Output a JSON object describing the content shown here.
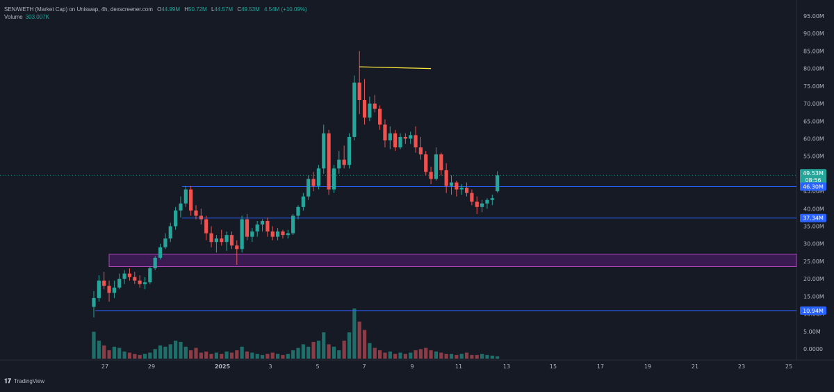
{
  "header": {
    "symbol": "SEN/WETH (Market Cap) on Uniswap, 4h, dexscreener.com",
    "ohlc": [
      {
        "key": "O",
        "value": "44.99M"
      },
      {
        "key": "H",
        "value": "50.72M"
      },
      {
        "key": "L",
        "value": "44.57M"
      },
      {
        "key": "C",
        "value": "49.53M"
      }
    ],
    "change": "4.54M (+10.09%)",
    "volume_label": "Volume",
    "volume_value": "303.007K"
  },
  "footer": {
    "brand": "TradingView",
    "logo_glyph": "𝟏𝟕"
  },
  "colors": {
    "background": "#161a25",
    "up": "#26a69a",
    "down": "#ef5350",
    "up_volume": "#1f6e69",
    "down_volume": "#8a3d46",
    "level_line": "#2962ff",
    "zone_fill": "#7b1fa2",
    "zone_border": "#ab47bc",
    "trend_line": "#ffeb3b",
    "axis_text": "#b2b5be",
    "grid": "#1f2431"
  },
  "chart_data": {
    "type": "candlestick",
    "yaxis": {
      "min": 0,
      "max": 95000000,
      "unit": "M",
      "ticks": [
        "95.00M",
        "90.00M",
        "85.00M",
        "80.00M",
        "75.00M",
        "70.00M",
        "65.00M",
        "60.00M",
        "55.00M",
        "50.00M",
        "45.00M",
        "40.00M",
        "35.00M",
        "30.00M",
        "25.00M",
        "20.00M",
        "15.00M",
        "10.00M",
        "5.00M",
        "0.0000"
      ],
      "tick_values": [
        95,
        90,
        85,
        80,
        75,
        70,
        65,
        60,
        55,
        50,
        45,
        40,
        35,
        30,
        25,
        20,
        15,
        10,
        5,
        0
      ]
    },
    "xaxis": {
      "labels": [
        "27",
        "29",
        "2025",
        "3",
        "5",
        "7",
        "9",
        "11",
        "13",
        "15",
        "17",
        "19",
        "21",
        "23",
        "25"
      ],
      "bold_label": "2025"
    },
    "candles": [
      [
        12.0,
        16.5,
        9.0,
        14.5
      ],
      [
        14.5,
        21.0,
        13.5,
        19.5
      ],
      [
        19.5,
        22.0,
        17.0,
        18.0
      ],
      [
        18.0,
        19.5,
        13.5,
        16.0
      ],
      [
        16.0,
        19.5,
        14.5,
        17.5
      ],
      [
        17.5,
        21.5,
        17.0,
        20.0
      ],
      [
        20.0,
        22.5,
        18.5,
        21.5
      ],
      [
        21.5,
        23.0,
        19.5,
        20.5
      ],
      [
        20.5,
        22.0,
        18.5,
        19.5
      ],
      [
        19.5,
        21.0,
        17.5,
        18.5
      ],
      [
        18.5,
        20.5,
        17.0,
        19.0
      ],
      [
        19.0,
        23.5,
        18.5,
        23.0
      ],
      [
        23.0,
        26.5,
        22.5,
        26.0
      ],
      [
        26.0,
        30.0,
        25.5,
        29.0
      ],
      [
        29.0,
        33.0,
        28.5,
        31.5
      ],
      [
        31.5,
        36.0,
        30.5,
        35.0
      ],
      [
        35.0,
        40.5,
        34.0,
        39.5
      ],
      [
        39.5,
        43.5,
        37.5,
        41.5
      ],
      [
        41.5,
        46.5,
        40.5,
        45.5
      ],
      [
        45.5,
        46.5,
        38.0,
        39.5
      ],
      [
        39.5,
        41.0,
        37.0,
        38.0
      ],
      [
        38.0,
        40.0,
        35.5,
        37.0
      ],
      [
        37.0,
        38.0,
        31.0,
        33.0
      ],
      [
        33.0,
        35.0,
        29.0,
        30.5
      ],
      [
        30.5,
        32.5,
        27.5,
        31.5
      ],
      [
        31.5,
        34.0,
        29.5,
        30.5
      ],
      [
        30.5,
        33.5,
        28.0,
        32.5
      ],
      [
        32.5,
        33.5,
        28.5,
        29.5
      ],
      [
        29.5,
        31.0,
        24.0,
        28.5
      ],
      [
        28.5,
        38.0,
        27.5,
        37.0
      ],
      [
        37.0,
        38.5,
        31.0,
        32.0
      ],
      [
        32.0,
        34.5,
        30.5,
        33.5
      ],
      [
        33.5,
        36.5,
        32.0,
        35.5
      ],
      [
        35.5,
        37.0,
        33.5,
        36.5
      ],
      [
        36.5,
        37.5,
        32.0,
        33.5
      ],
      [
        33.5,
        35.0,
        31.0,
        32.0
      ],
      [
        32.0,
        34.5,
        31.0,
        33.5
      ],
      [
        33.5,
        34.0,
        31.5,
        32.5
      ],
      [
        32.5,
        34.0,
        31.5,
        33.0
      ],
      [
        33.0,
        38.5,
        32.5,
        38.0
      ],
      [
        38.0,
        41.0,
        37.0,
        40.5
      ],
      [
        40.5,
        44.5,
        39.5,
        43.5
      ],
      [
        43.5,
        49.5,
        42.5,
        48.5
      ],
      [
        48.5,
        50.5,
        45.0,
        46.5
      ],
      [
        46.5,
        52.5,
        45.5,
        51.5
      ],
      [
        51.5,
        64.0,
        50.0,
        61.5
      ],
      [
        61.5,
        62.5,
        44.0,
        45.5
      ],
      [
        45.5,
        52.5,
        44.5,
        51.5
      ],
      [
        51.5,
        56.5,
        50.0,
        54.0
      ],
      [
        54.0,
        58.0,
        51.5,
        52.5
      ],
      [
        52.5,
        61.5,
        51.5,
        60.5
      ],
      [
        60.5,
        78.0,
        59.5,
        76.0
      ],
      [
        76.0,
        85.0,
        67.0,
        71.0
      ],
      [
        71.0,
        77.0,
        64.0,
        66.0
      ],
      [
        66.0,
        72.0,
        65.0,
        70.0
      ],
      [
        70.0,
        72.5,
        67.5,
        68.5
      ],
      [
        68.5,
        69.5,
        62.5,
        64.0
      ],
      [
        64.0,
        65.5,
        57.5,
        59.5
      ],
      [
        59.5,
        63.5,
        57.0,
        61.5
      ],
      [
        61.5,
        62.5,
        56.5,
        57.5
      ],
      [
        57.5,
        61.5,
        57.0,
        60.5
      ],
      [
        60.5,
        61.5,
        58.5,
        60.0
      ],
      [
        60.0,
        62.0,
        58.5,
        61.0
      ],
      [
        61.0,
        63.5,
        56.0,
        57.5
      ],
      [
        57.5,
        60.5,
        54.0,
        55.5
      ],
      [
        55.5,
        56.5,
        49.5,
        50.5
      ],
      [
        50.5,
        52.0,
        47.0,
        48.5
      ],
      [
        48.5,
        57.5,
        48.0,
        55.5
      ],
      [
        55.5,
        56.0,
        49.5,
        51.0
      ],
      [
        51.0,
        53.0,
        44.5,
        46.5
      ],
      [
        46.5,
        49.5,
        44.0,
        47.5
      ],
      [
        47.5,
        48.0,
        43.5,
        45.5
      ],
      [
        45.5,
        47.0,
        44.0,
        46.0
      ],
      [
        46.0,
        47.5,
        43.5,
        44.5
      ],
      [
        44.5,
        45.5,
        41.0,
        42.0
      ],
      [
        42.0,
        43.5,
        38.5,
        40.5
      ],
      [
        40.5,
        42.5,
        39.0,
        41.5
      ],
      [
        41.5,
        43.0,
        40.0,
        42.5
      ],
      [
        42.5,
        44.0,
        41.0,
        43.0
      ],
      [
        44.99,
        50.72,
        44.57,
        49.53
      ]
    ],
    "volume_max": 1,
    "volumes": [
      0.45,
      0.3,
      0.22,
      0.14,
      0.2,
      0.18,
      0.12,
      0.1,
      0.08,
      0.06,
      0.08,
      0.1,
      0.16,
      0.22,
      0.2,
      0.24,
      0.3,
      0.28,
      0.2,
      0.14,
      0.18,
      0.1,
      0.12,
      0.08,
      0.1,
      0.08,
      0.12,
      0.1,
      0.14,
      0.2,
      0.12,
      0.1,
      0.08,
      0.06,
      0.08,
      0.1,
      0.08,
      0.06,
      0.08,
      0.14,
      0.18,
      0.24,
      0.2,
      0.28,
      0.3,
      0.44,
      0.24,
      0.2,
      0.14,
      0.3,
      0.44,
      0.84,
      0.62,
      0.48,
      0.26,
      0.18,
      0.14,
      0.1,
      0.12,
      0.08,
      0.1,
      0.08,
      0.1,
      0.14,
      0.16,
      0.18,
      0.14,
      0.12,
      0.1,
      0.08,
      0.08,
      0.06,
      0.08,
      0.1,
      0.06,
      0.06,
      0.08,
      0.06,
      0.05,
      0.04
    ],
    "levels": [
      {
        "label": "46.30M",
        "value": 46.3
      },
      {
        "label": "37.34M",
        "value": 37.34
      },
      {
        "label": "10.94M",
        "value": 10.94
      }
    ],
    "zone": {
      "low": 23.5,
      "high": 27.0
    },
    "trendline": {
      "from": {
        "index": 52,
        "value": 80.5
      },
      "to": {
        "index": 66,
        "value": 80.0
      }
    },
    "last_price": {
      "label": "49.53M",
      "countdown": "08:56",
      "value": 49.53
    }
  }
}
